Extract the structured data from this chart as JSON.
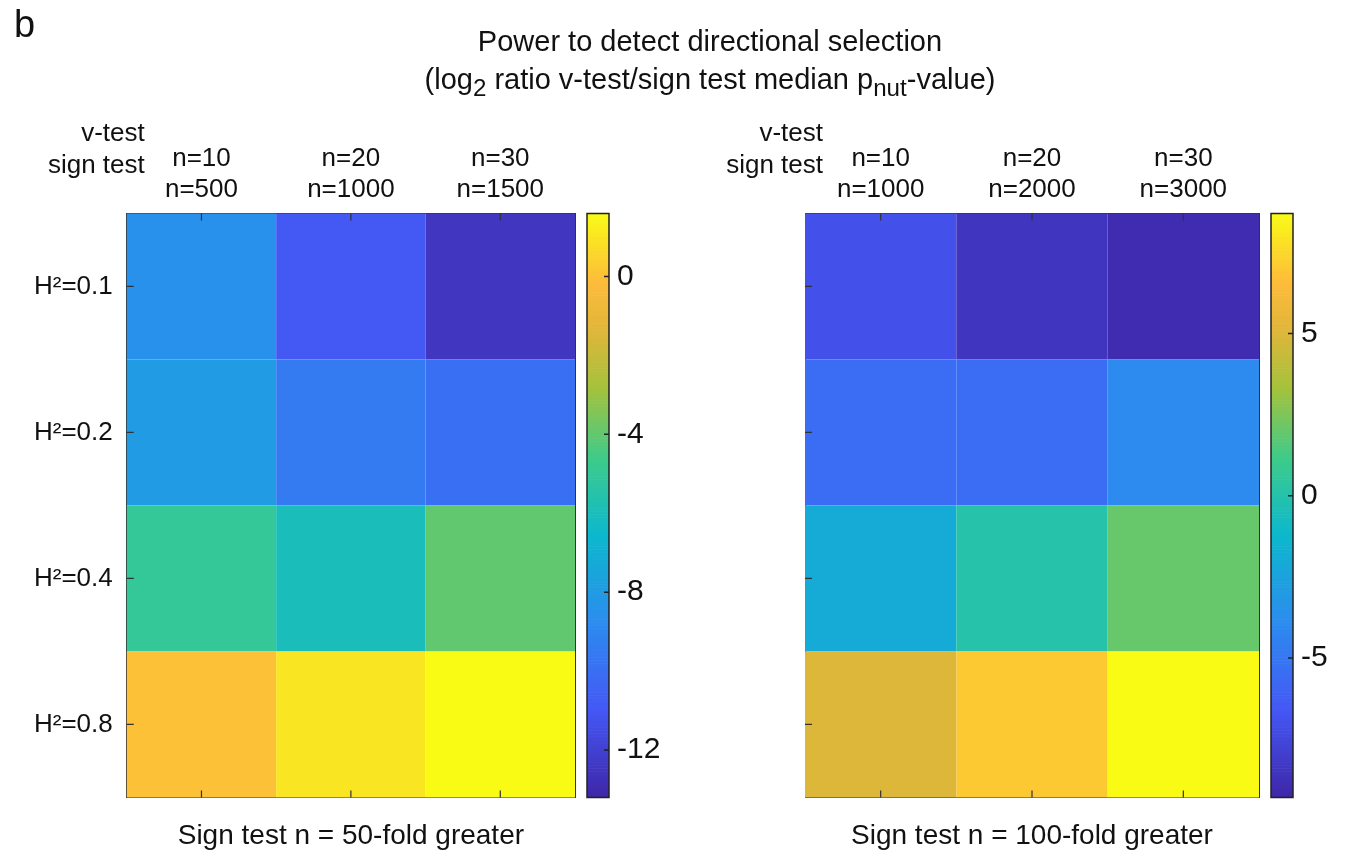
{
  "chart_data": [
    {
      "type": "heatmap",
      "title": "Power to detect directional selection",
      "subtitle": "(log$_{2}$ ratio v-test/sign test median p$_{nut}$-value)",
      "xlabel": "Sign test n = 50-fold greater",
      "annotations": [
        "b",
        "v-test\nsign test"
      ],
      "categories": [
        "n=10\nn=500",
        "n=20\nn=1000",
        "n=30\nn=1500"
      ],
      "y_categories": [
        "H²=0.1",
        "H²=0.2",
        "H²=0.4",
        "H²=0.8"
      ],
      "cells": [
        [
          -8.5,
          -11,
          -12.5
        ],
        [
          -8,
          -9.5,
          -10
        ],
        [
          -5,
          -6,
          -4
        ],
        [
          0,
          1,
          1.6
        ]
      ],
      "clim": [
        -13.2,
        1.6
      ],
      "cticks": [
        -12,
        -8,
        -4,
        0
      ]
    },
    {
      "type": "heatmap",
      "xlabel": "Sign test n = 100-fold greater",
      "annotations": [
        "v-test\nsign test"
      ],
      "categories": [
        "n=10\nn=1000",
        "n=20\nn=2000",
        "n=30\nn=3000"
      ],
      "y_categories": [
        null,
        null,
        null,
        null
      ],
      "tick_labels": "x",
      "cells": [
        [
          -7,
          -8.5,
          -9
        ],
        [
          -5.5,
          -5.5,
          -4
        ],
        [
          -2,
          0,
          2
        ],
        [
          5,
          7,
          8.7
        ]
      ],
      "clim": [
        -9.3,
        8.7
      ],
      "cticks": [
        -5,
        0,
        5
      ]
    }
  ]
}
